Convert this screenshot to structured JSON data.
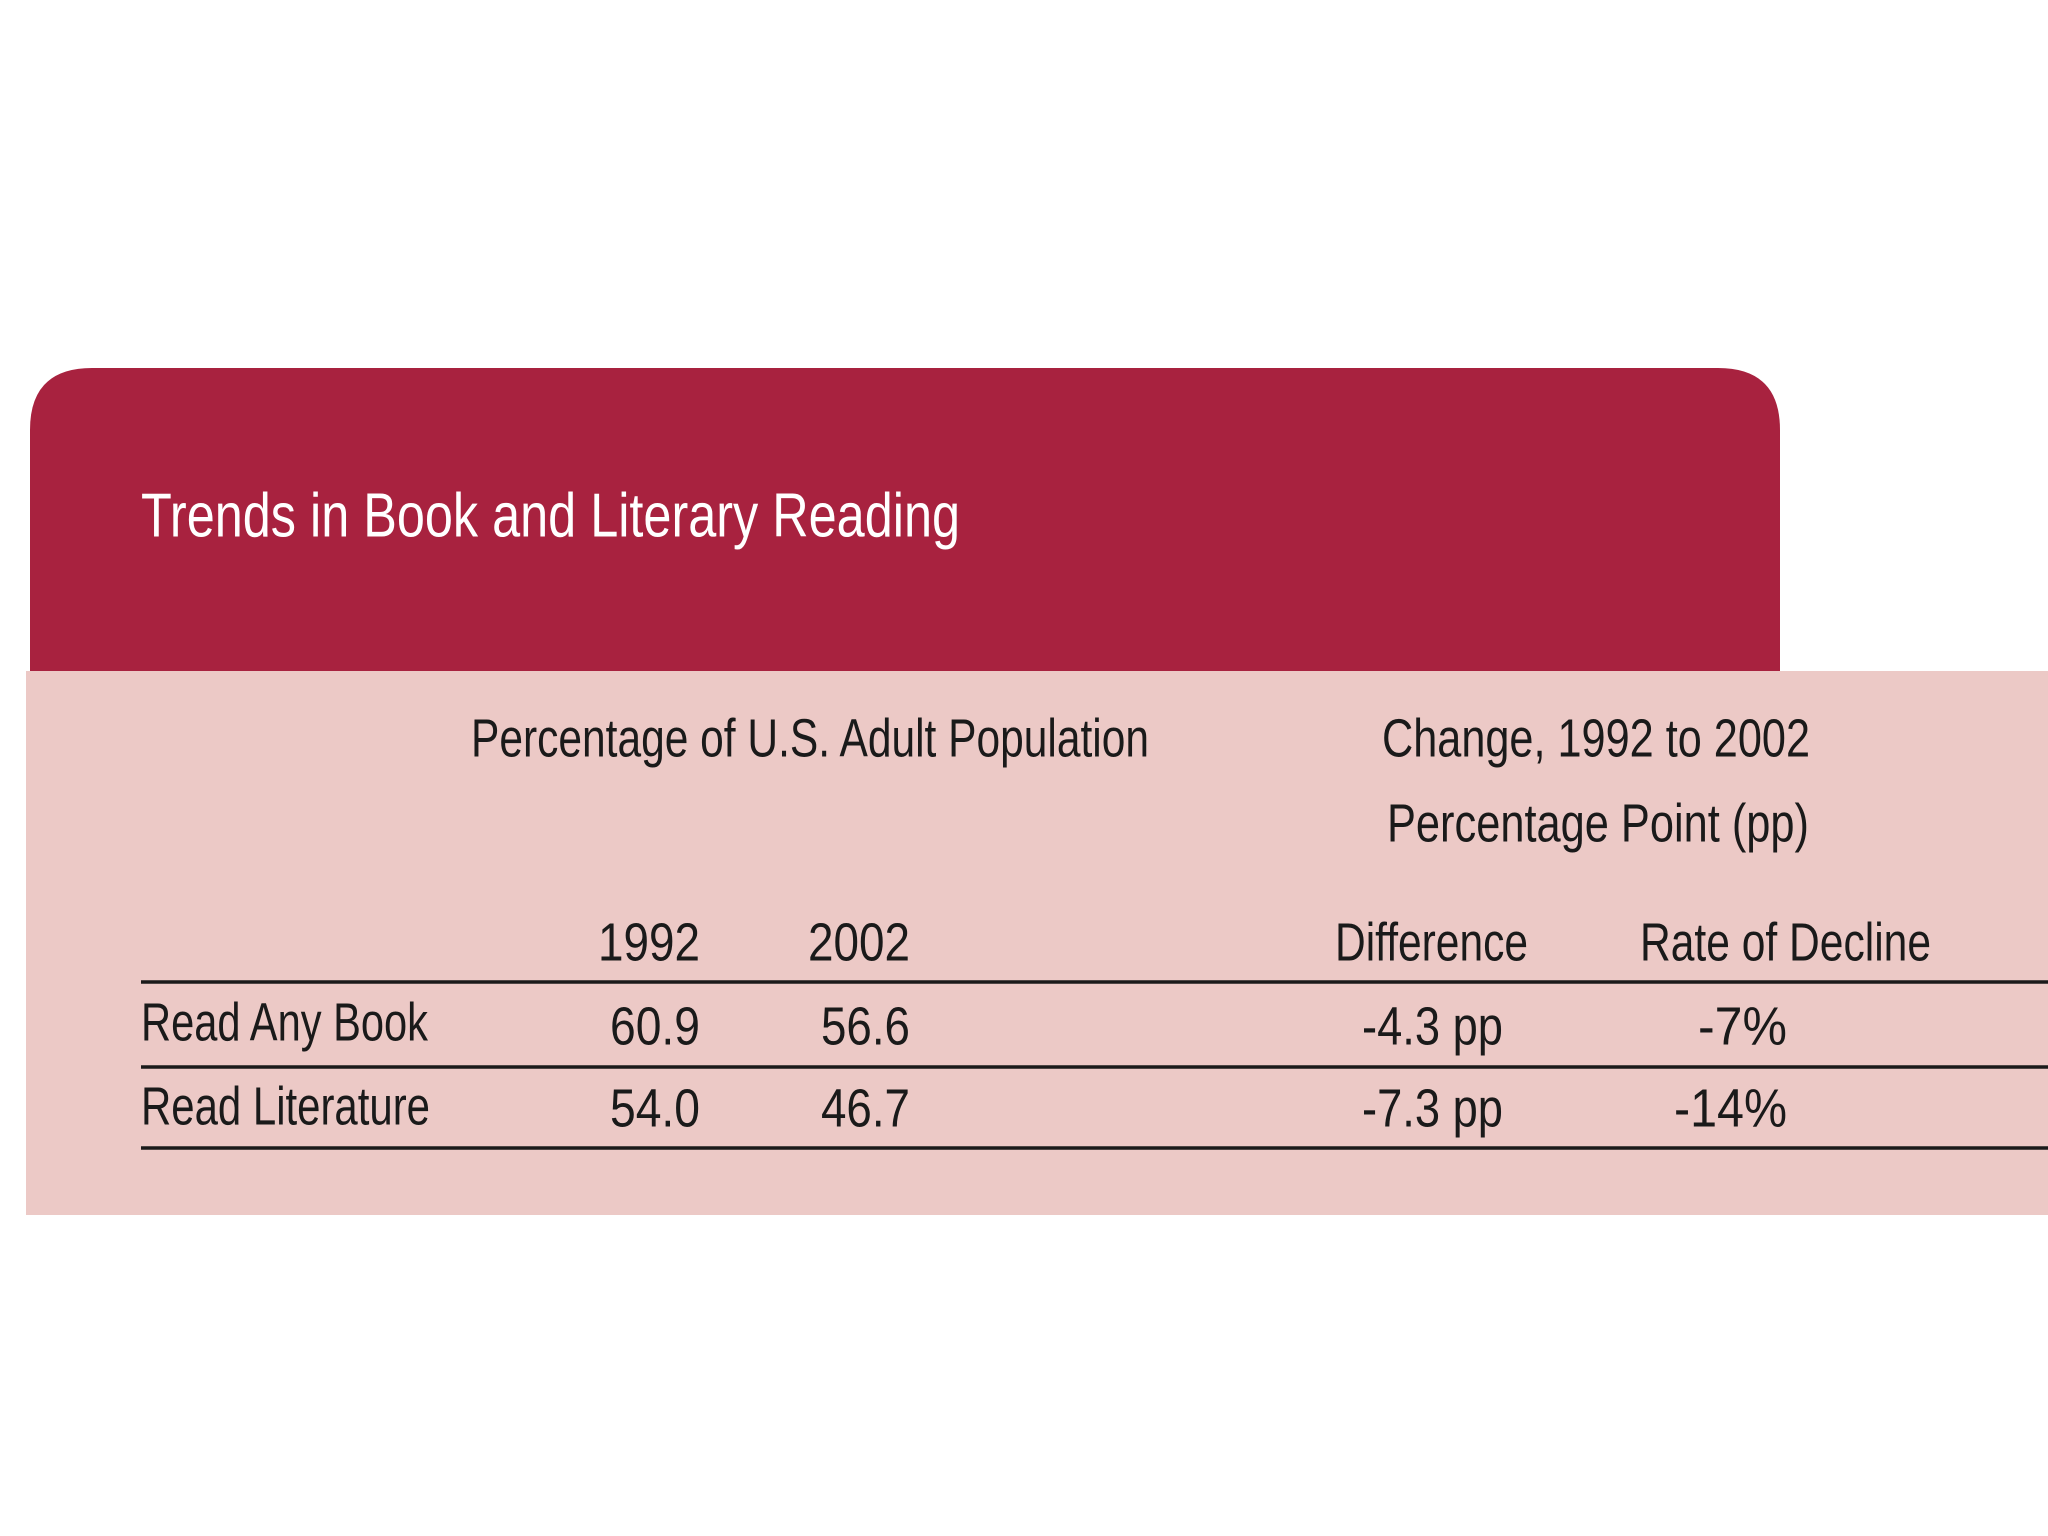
{
  "header": {
    "title": "Trends in Book and Literary Reading"
  },
  "table": {
    "group_headers": [
      "Percentage of U.S. Adult Population",
      "Change, 1992 to 2002",
      "Percentage Point  (pp)"
    ],
    "columns": [
      "1992",
      "2002",
      "Difference",
      "Rate of Decline"
    ],
    "rows": [
      [
        "Read Any Book",
        "60.9",
        "56.6",
        "-4.3 pp",
        "-7%"
      ],
      [
        "Read Literature",
        "54.0",
        "46.7",
        "-7.3 pp",
        "-14%"
      ]
    ]
  }
}
